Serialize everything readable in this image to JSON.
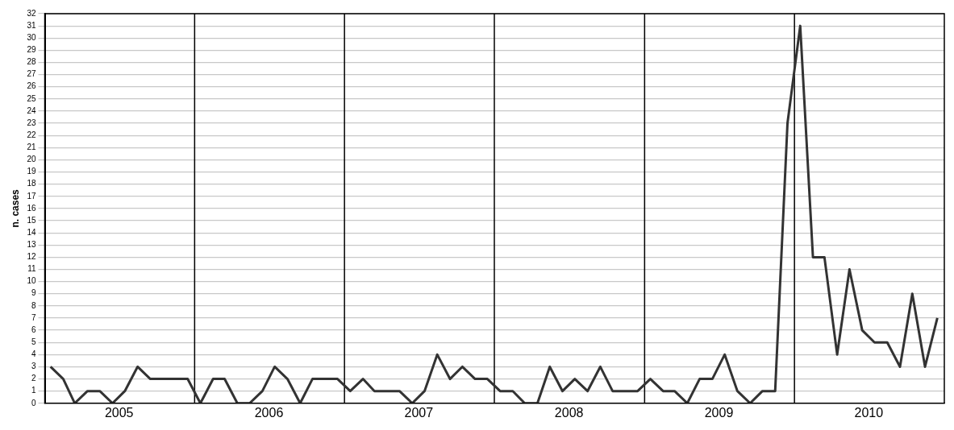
{
  "chart_data": {
    "type": "line",
    "ylabel": "n. cases",
    "x": [
      "2005-01-15",
      "2005-02-15",
      "2005-03-15",
      "2005-04-15",
      "2005-05-15",
      "2005-06-15",
      "2005-07-15",
      "2005-08-15",
      "2005-09-15",
      "2005-10-15",
      "2005-11-15",
      "2005-12-15",
      "2006-01-15",
      "2006-02-15",
      "2006-03-15",
      "2006-04-15",
      "2006-05-15",
      "2006-06-15",
      "2006-07-15",
      "2006-08-15",
      "2006-09-15",
      "2006-10-15",
      "2006-11-15",
      "2006-12-15",
      "2007-01-15",
      "2007-02-15",
      "2007-03-15",
      "2007-04-15",
      "2007-05-15",
      "2007-06-15",
      "2007-07-15",
      "2007-08-15",
      "2007-09-15",
      "2007-10-15",
      "2007-11-15",
      "2007-12-15",
      "2008-01-15",
      "2008-02-15",
      "2008-03-15",
      "2008-04-15",
      "2008-05-15",
      "2008-06-15",
      "2008-07-15",
      "2008-08-15",
      "2008-09-15",
      "2008-10-15",
      "2008-11-15",
      "2008-12-15",
      "2009-01-15",
      "2009-02-15",
      "2009-03-15",
      "2009-04-15",
      "2009-05-15",
      "2009-06-15",
      "2009-07-15",
      "2009-08-15",
      "2009-09-15",
      "2009-10-15",
      "2009-11-15",
      "2009-12-15",
      "2010-01-15",
      "2010-02-15",
      "2010-03-15",
      "2010-04-15",
      "2010-05-15",
      "2010-06-15",
      "2010-07-15",
      "2010-08-15",
      "2010-09-15",
      "2010-10-15",
      "2010-11-15",
      "2010-12-15"
    ],
    "series": [
      {
        "color": "#333333",
        "values": [
          3,
          2,
          0,
          1,
          1,
          0,
          1,
          3,
          2,
          2,
          2,
          2,
          0,
          2,
          2,
          0,
          0,
          1,
          3,
          2,
          0,
          2,
          2,
          2,
          1,
          2,
          1,
          1,
          1,
          0,
          1,
          4,
          2,
          3,
          2,
          2,
          1,
          1,
          0,
          0,
          3,
          1,
          2,
          1,
          3,
          1,
          1,
          1,
          2,
          1,
          1,
          0,
          2,
          2,
          4,
          1,
          0,
          1,
          1,
          23,
          31,
          12,
          12,
          4,
          11,
          6,
          5,
          5,
          3,
          9,
          3,
          7
        ]
      }
    ],
    "xlim": [
      "2005-01-01",
      "2011-01-01"
    ],
    "xticks": [
      {
        "value": "2005-07-01",
        "label": "2005"
      },
      {
        "value": "2006-07-01",
        "label": "2006"
      },
      {
        "value": "2007-07-01",
        "label": "2007"
      },
      {
        "value": "2008-07-01",
        "label": "2008"
      },
      {
        "value": "2009-07-01",
        "label": "2009"
      },
      {
        "value": "2010-07-01",
        "label": "2010"
      }
    ],
    "ylim": [
      0,
      32
    ],
    "yticks": [
      0,
      1,
      2,
      3,
      4,
      5,
      6,
      7,
      8,
      9,
      10,
      11,
      12,
      13,
      14,
      15,
      16,
      17,
      18,
      19,
      20,
      21,
      22,
      23,
      24,
      25,
      26,
      27,
      28,
      29,
      30,
      31,
      32
    ],
    "ref_lines": [
      {
        "axis": "x",
        "value": "2006-01-01",
        "color": "#000000"
      },
      {
        "axis": "x",
        "value": "2007-01-01",
        "color": "#000000"
      },
      {
        "axis": "x",
        "value": "2008-01-01",
        "color": "#000000"
      },
      {
        "axis": "x",
        "value": "2009-01-01",
        "color": "#000000"
      },
      {
        "axis": "x",
        "value": "2010-01-01",
        "color": "#000000"
      }
    ],
    "grid": "y",
    "legend": false,
    "marker": "none",
    "line_style": "solid"
  }
}
